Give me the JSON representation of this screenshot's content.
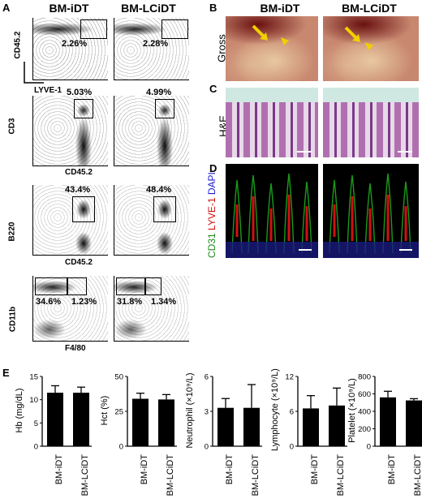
{
  "panels": {
    "A": "A",
    "B": "B",
    "C": "C",
    "D": "D",
    "E": "E"
  },
  "columns": {
    "left": "BM-iDT",
    "right": "BM-LCiDT"
  },
  "flow": [
    {
      "y_label": "CD45.2",
      "x_label": "LYVE-1",
      "left_pct": "2.26%",
      "right_pct": "2.28%"
    },
    {
      "y_label": "CD3",
      "x_label": "CD45.2",
      "left_pct": "5.03%",
      "right_pct": "4.99%"
    },
    {
      "y_label": "B220",
      "x_label": "CD45.2",
      "left_pct": "43.4%",
      "right_pct": "48.4%"
    },
    {
      "y_label": "CD11b",
      "x_label": "F4/80",
      "left_pct_a": "34.6%",
      "left_pct_b": "1.23%",
      "right_pct_a": "31.8%",
      "right_pct_b": "1.34%"
    }
  ],
  "image_rows": {
    "gross": "Gross",
    "he": "H&E",
    "d_cd31": "CD31",
    "d_lyve": "LYVE-1",
    "d_dapi": "DAPI"
  },
  "colors": {
    "cd31": "#1a8a1a",
    "lyve": "#d01010",
    "dapi": "#1a1ad0",
    "arrow": "#f0d000"
  },
  "chart_data": [
    {
      "type": "bar",
      "ylabel": "Hb (mg/dL)",
      "ylim": [
        0,
        15
      ],
      "yticks": [
        0,
        5,
        10,
        15
      ],
      "categories": [
        "BM-iDT",
        "BM-LCiDT"
      ],
      "values": [
        11.5,
        11.5
      ],
      "errors": [
        1.5,
        1.2
      ]
    },
    {
      "type": "bar",
      "ylabel": "Hct (%)",
      "ylim": [
        0,
        50
      ],
      "yticks": [
        0,
        25,
        50
      ],
      "categories": [
        "BM-iDT",
        "BM-LCiDT"
      ],
      "values": [
        34,
        33.5
      ],
      "errors": [
        4,
        3.5
      ]
    },
    {
      "type": "bar",
      "ylabel": "Neutrophil (×10⁹/L)",
      "ylim": [
        0,
        6
      ],
      "yticks": [
        0,
        3,
        6
      ],
      "categories": [
        "BM-iDT",
        "BM-LCiDT"
      ],
      "values": [
        3.3,
        3.3
      ],
      "errors": [
        0.8,
        2.0
      ]
    },
    {
      "type": "bar",
      "ylabel": "Lymphocyte (×10⁹/L)",
      "ylim": [
        0,
        12
      ],
      "yticks": [
        0,
        6,
        12
      ],
      "categories": [
        "BM-iDT",
        "BM-LCiDT"
      ],
      "values": [
        6.5,
        7.0
      ],
      "errors": [
        2.2,
        3.0
      ]
    },
    {
      "type": "bar",
      "ylabel": "Platelet (×10⁹/L)",
      "ylim": [
        0,
        800
      ],
      "yticks": [
        0,
        200,
        400,
        600,
        800
      ],
      "categories": [
        "BM-iDT",
        "BM-LCiDT"
      ],
      "values": [
        560,
        525
      ],
      "errors": [
        70,
        20
      ]
    }
  ]
}
